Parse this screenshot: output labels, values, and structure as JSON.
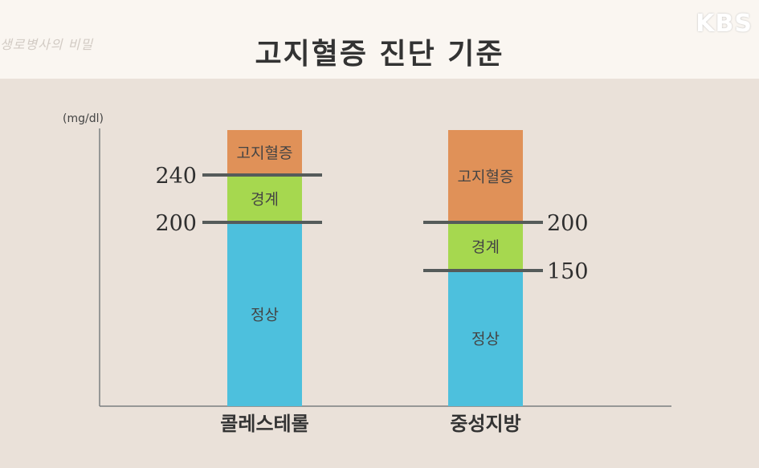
{
  "header": {
    "show_title": "생로병사의 비밀",
    "broadcaster": "KBS",
    "title": "고지혈증 진단 기준"
  },
  "colors": {
    "normal": "#4dc0dd",
    "borderline": "#a6d84f",
    "high": "#e09158",
    "line": "#555b5a",
    "text": "#333333",
    "segment_text": "#444444"
  },
  "chart_data": {
    "type": "bar",
    "unit_label": "(mg/dl)",
    "grid": false,
    "categories": [
      "콜레스테롤",
      "중성지방"
    ],
    "bars": [
      {
        "category": "콜레스테롤",
        "thresholds": [
          200,
          240
        ],
        "threshold_side": "left",
        "segments": [
          {
            "label": "정상",
            "color": "#4dc0dd"
          },
          {
            "label": "경계",
            "color": "#a6d84f"
          },
          {
            "label": "고지혈증",
            "color": "#e09158"
          }
        ]
      },
      {
        "category": "중성지방",
        "thresholds": [
          150,
          200
        ],
        "threshold_side": "right",
        "segments": [
          {
            "label": "정상",
            "color": "#4dc0dd"
          },
          {
            "label": "경계",
            "color": "#a6d84f"
          },
          {
            "label": "고지혈증",
            "color": "#e09158"
          }
        ]
      }
    ]
  }
}
